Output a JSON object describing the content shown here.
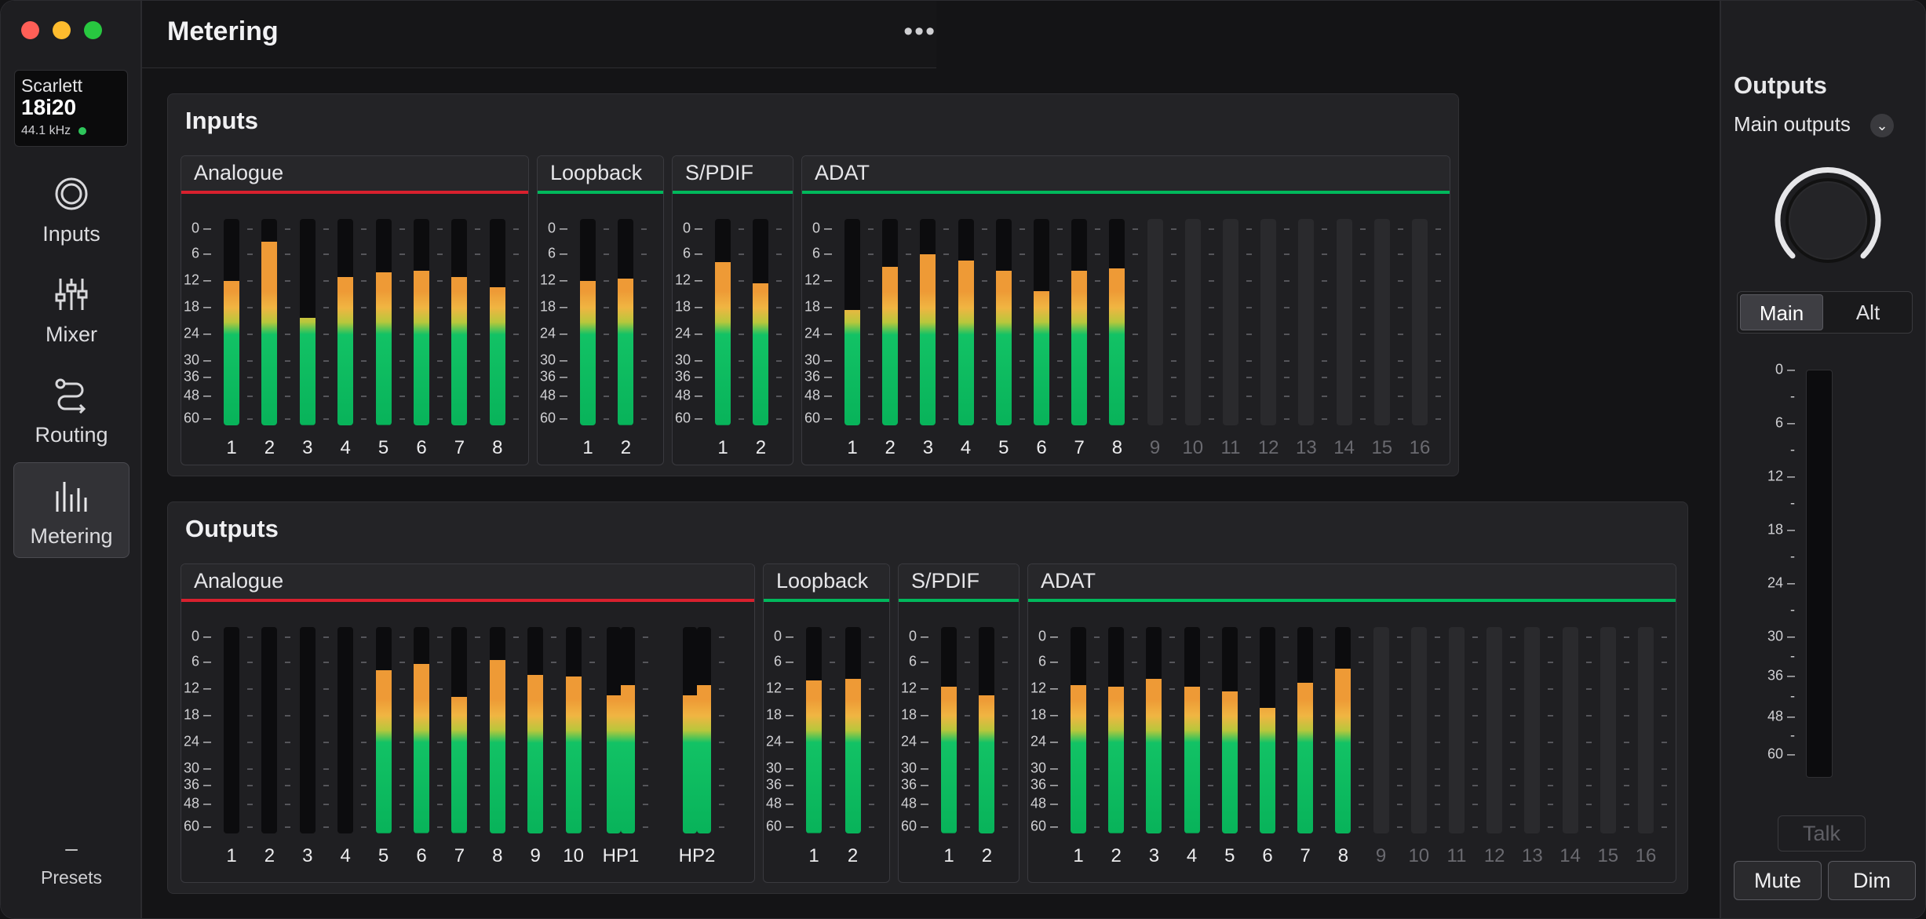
{
  "window": {
    "title": "Metering",
    "traffic_lights": {
      "close": "#ff5f57",
      "minimize": "#febc2e",
      "zoom": "#28c840"
    },
    "more_icon": "more-horizontal-icon"
  },
  "colors": {
    "accent_green": "#00b85c",
    "analogue_red": "#d8202e",
    "meter_green": "#0fbf62",
    "meter_orange": "#ee9a36",
    "status_dot": "#2ec65b"
  },
  "sidebar": {
    "device": {
      "brand": "Scarlett",
      "model": "18i20",
      "rate": "44.1 kHz"
    },
    "items": [
      {
        "label": "Inputs",
        "icon": "inputs-icon",
        "active": false
      },
      {
        "label": "Mixer",
        "icon": "mixer-icon",
        "active": false
      },
      {
        "label": "Routing",
        "icon": "routing-icon",
        "active": false
      },
      {
        "label": "Metering",
        "icon": "metering-icon",
        "active": true
      }
    ],
    "presets": {
      "label": "Presets",
      "icon": "minus-icon"
    }
  },
  "scale": [
    "0",
    "6",
    "12",
    "18",
    "24",
    "30",
    "36",
    "48",
    "60"
  ],
  "inputs": {
    "title": "Inputs",
    "groups": [
      {
        "name": "Analogue",
        "accent": "analogue_red",
        "channels": [
          {
            "label": "1",
            "level": 0.7
          },
          {
            "label": "2",
            "level": 0.89
          },
          {
            "label": "3",
            "level": 0.52
          },
          {
            "label": "4",
            "level": 0.72
          },
          {
            "label": "5",
            "level": 0.74
          },
          {
            "label": "6",
            "level": 0.75
          },
          {
            "label": "7",
            "level": 0.72
          },
          {
            "label": "8",
            "level": 0.67
          }
        ]
      },
      {
        "name": "Loopback",
        "accent": "accent_green",
        "channels": [
          {
            "label": "1",
            "level": 0.7
          },
          {
            "label": "2",
            "level": 0.71
          }
        ]
      },
      {
        "name": "S/PDIF",
        "accent": "accent_green",
        "channels": [
          {
            "label": "1",
            "level": 0.79
          },
          {
            "label": "2",
            "level": 0.69
          }
        ]
      },
      {
        "name": "ADAT",
        "accent": "accent_green",
        "channels": [
          {
            "label": "1",
            "level": 0.56
          },
          {
            "label": "2",
            "level": 0.77
          },
          {
            "label": "3",
            "level": 0.83
          },
          {
            "label": "4",
            "level": 0.8
          },
          {
            "label": "5",
            "level": 0.75
          },
          {
            "label": "6",
            "level": 0.65
          },
          {
            "label": "7",
            "level": 0.75
          },
          {
            "label": "8",
            "level": 0.76
          },
          {
            "label": "9",
            "level": null
          },
          {
            "label": "10",
            "level": null
          },
          {
            "label": "11",
            "level": null
          },
          {
            "label": "12",
            "level": null
          },
          {
            "label": "13",
            "level": null
          },
          {
            "label": "14",
            "level": null
          },
          {
            "label": "15",
            "level": null
          },
          {
            "label": "16",
            "level": null
          }
        ]
      }
    ]
  },
  "outputs": {
    "title": "Outputs",
    "groups": [
      {
        "name": "Analogue",
        "accent": "analogue_red",
        "channels": [
          {
            "label": "1",
            "level": 0
          },
          {
            "label": "2",
            "level": 0
          },
          {
            "label": "3",
            "level": 0
          },
          {
            "label": "4",
            "level": 0
          },
          {
            "label": "5",
            "level": 0.79
          },
          {
            "label": "6",
            "level": 0.82
          },
          {
            "label": "7",
            "level": 0.66
          },
          {
            "label": "8",
            "level": 0.84
          },
          {
            "label": "9",
            "level": 0.77
          },
          {
            "label": "10",
            "level": 0.76
          },
          {
            "label": "HP1",
            "levels": [
              0.67,
              0.72
            ]
          },
          {
            "label": "HP2",
            "levels": [
              0.67,
              0.72
            ]
          }
        ]
      },
      {
        "name": "Loopback",
        "accent": "accent_green",
        "channels": [
          {
            "label": "1",
            "level": 0.74
          },
          {
            "label": "2",
            "level": 0.75
          }
        ]
      },
      {
        "name": "S/PDIF",
        "accent": "accent_green",
        "channels": [
          {
            "label": "1",
            "level": 0.71
          },
          {
            "label": "2",
            "level": 0.67
          }
        ]
      },
      {
        "name": "ADAT",
        "accent": "accent_green",
        "channels": [
          {
            "label": "1",
            "level": 0.72
          },
          {
            "label": "2",
            "level": 0.71
          },
          {
            "label": "3",
            "level": 0.75
          },
          {
            "label": "4",
            "level": 0.71
          },
          {
            "label": "5",
            "level": 0.69
          },
          {
            "label": "6",
            "level": 0.61
          },
          {
            "label": "7",
            "level": 0.73
          },
          {
            "label": "8",
            "level": 0.8
          },
          {
            "label": "9",
            "level": null
          },
          {
            "label": "10",
            "level": null
          },
          {
            "label": "11",
            "level": null
          },
          {
            "label": "12",
            "level": null
          },
          {
            "label": "13",
            "level": null
          },
          {
            "label": "14",
            "level": null
          },
          {
            "label": "15",
            "level": null
          },
          {
            "label": "16",
            "level": null
          }
        ]
      }
    ]
  },
  "right_panel": {
    "title": "Outputs",
    "selector": {
      "value": "Main outputs",
      "icon": "chevron-down-icon"
    },
    "volume_knob_icon": "volume-knob",
    "main_alt": {
      "main": "Main",
      "alt": "Alt",
      "selected": "Main"
    },
    "meter_level": 0,
    "talk": "Talk",
    "mute": "Mute",
    "dim": "Dim"
  }
}
